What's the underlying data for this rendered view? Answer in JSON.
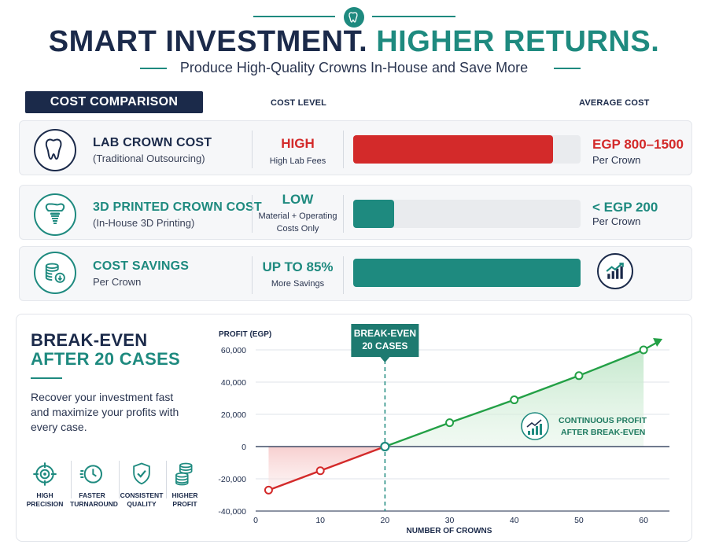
{
  "header": {
    "title_part1": "SMART INVESTMENT.",
    "title_part2": "HIGHER RETURNS.",
    "subtitle": "Produce High-Quality Crowns In-House and Save More"
  },
  "comparison": {
    "section_label": "COST COMPARISON",
    "col_level": "COST LEVEL",
    "col_avg": "AVERAGE COST",
    "rows": [
      {
        "title": "LAB CROWN COST",
        "subtitle": "(Traditional Outsourcing)",
        "level": "HIGH",
        "level_sub": "High Lab Fees",
        "bar_fraction": 0.88,
        "bar_color": "#d32a2a",
        "avg": "EGP 800–1500",
        "avg_sub": "Per Crown",
        "icon": "tooth-icon"
      },
      {
        "title": "3D PRINTED CROWN COST",
        "subtitle": "(In-House 3D Printing)",
        "level": "LOW",
        "level_sub": "Material + Operating Costs Only",
        "bar_fraction": 0.18,
        "bar_color": "#1e8a7f",
        "avg": "< EGP 200",
        "avg_sub": "Per Crown",
        "icon": "dental-implant-icon"
      },
      {
        "title": "COST SAVINGS",
        "subtitle": "Per Crown",
        "level": "UP TO 85%",
        "level_sub": "More Savings",
        "bar_fraction": 1.0,
        "bar_color": "#1e8a7f",
        "icon": "coin-stack-icon",
        "trail_icon": "growth-chart-icon"
      }
    ]
  },
  "breakeven": {
    "title_line1": "BREAK-EVEN",
    "title_line2": "AFTER 20 CASES",
    "description": "Recover your investment fast and maximize your profits with every case.",
    "features": [
      {
        "label": "HIGH PRECISION",
        "icon": "crosshair-icon"
      },
      {
        "label": "FASTER TURNAROUND",
        "icon": "fast-clock-icon"
      },
      {
        "label": "CONSISTENT QUALITY",
        "icon": "shield-check-icon"
      },
      {
        "label": "HIGHER PROFIT",
        "icon": "coin-stack-icon"
      }
    ]
  },
  "chart_data": {
    "type": "line",
    "ylabel": "PROFIT (EGP)",
    "xlabel": "NUMBER OF CROWNS",
    "xlim": [
      0,
      64
    ],
    "ylim": [
      -40000,
      65000
    ],
    "x_ticks": [
      0,
      10,
      20,
      30,
      40,
      50,
      60
    ],
    "y_ticks": [
      60000,
      40000,
      20000,
      0,
      -20000,
      -40000
    ],
    "y_tick_labels": [
      "60,000",
      "40,000",
      "20,000",
      "0",
      "-20,000",
      "-40,000"
    ],
    "grid": true,
    "series": [
      {
        "color": "#d32a2a",
        "points": [
          [
            2,
            -27000
          ],
          [
            10,
            -15000
          ],
          [
            20,
            0
          ]
        ]
      },
      {
        "color": "#23a046",
        "points": [
          [
            20,
            0
          ],
          [
            30,
            14800
          ],
          [
            40,
            29000
          ],
          [
            50,
            44000
          ],
          [
            60,
            60000
          ]
        ]
      }
    ],
    "break_even_x": 20,
    "annotations": {
      "break_even_label_line1": "BREAK-EVEN",
      "break_even_label_line2": "20 CASES",
      "profit_label_line1": "CONTINUOUS PROFIT",
      "profit_label_line2": "AFTER BREAK-EVEN"
    }
  }
}
